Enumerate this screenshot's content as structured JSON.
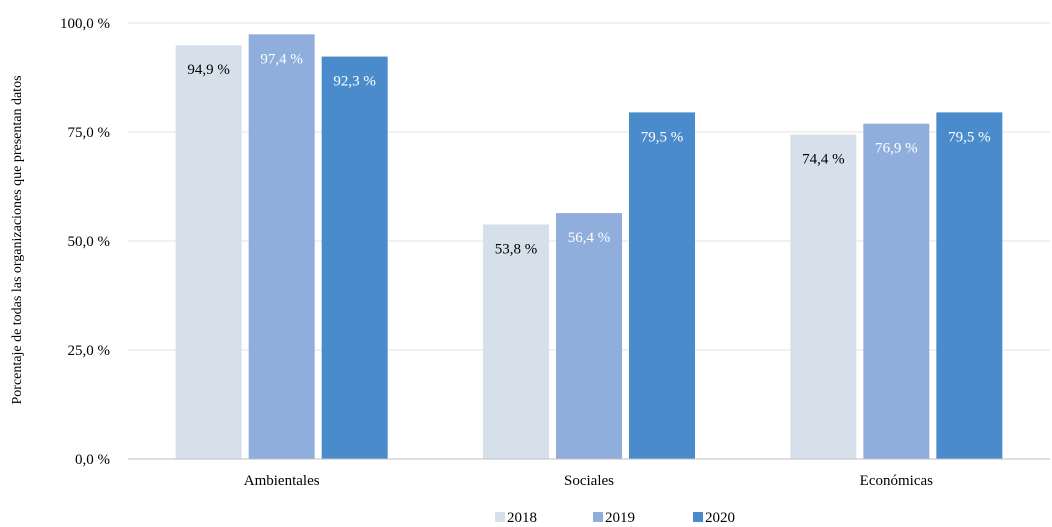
{
  "chart_data": {
    "type": "bar",
    "categories": [
      "Ambientales",
      "Sociales",
      "Económicas"
    ],
    "series": [
      {
        "name": "2018",
        "values": [
          94.9,
          53.8,
          74.4
        ],
        "labels": [
          "94,9 %",
          "53,8 %",
          "74,4 %"
        ],
        "color": "#d6e0ea",
        "label_color": "#000000"
      },
      {
        "name": "2019",
        "values": [
          97.4,
          56.4,
          76.9
        ],
        "labels": [
          "97,4 %",
          "56,4 %",
          "76,9 %"
        ],
        "color": "#8faedc",
        "label_color": "#ffffff"
      },
      {
        "name": "2020",
        "values": [
          92.3,
          79.5,
          79.5
        ],
        "labels": [
          "92,3 %",
          "79,5 %",
          "79,5 %"
        ],
        "color": "#4a8ccb",
        "label_color": "#ffffff"
      }
    ],
    "ylabel": "Porcentaje de todas las organizaciones que presentan datos",
    "xlabel": "",
    "ylim": [
      0,
      100
    ],
    "yticks": [
      0,
      25,
      50,
      75,
      100
    ],
    "ytick_labels": [
      "0,0 %",
      "25,0 %",
      "50,0 %",
      "75,0 %",
      "100,0 %"
    ],
    "grid": true,
    "legend": "bottom-center"
  }
}
